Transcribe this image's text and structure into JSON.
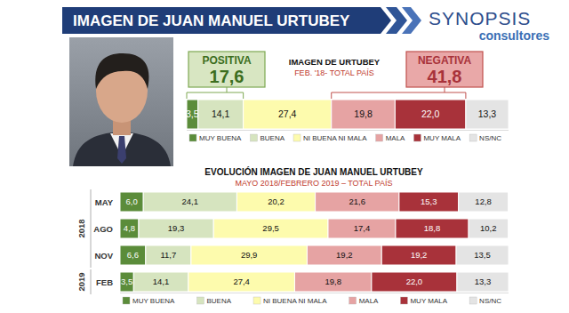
{
  "header": {
    "title": "IMAGEN DE JUAN MANUEL URTUBEY",
    "logo_main": "SYNOPSIS",
    "logo_sub": "consultores"
  },
  "summary": {
    "positive": {
      "label": "POSITIVA",
      "value": 17.6,
      "value_label": "17,6"
    },
    "negative": {
      "label": "NEGATIVA",
      "value": 41.8,
      "value_label": "41,8"
    }
  },
  "chart_data": [
    {
      "type": "bar",
      "orientation": "horizontal",
      "stacked": true,
      "data_labels": true,
      "tick_labels": false,
      "legend": "bottom",
      "title": "IMAGEN DE URTUBEY",
      "subtitle": "FEB. '18- TOTAL PAÍS",
      "categories": [
        null
      ],
      "xlim": [
        0,
        100.1
      ],
      "series": [
        {
          "name": "MUY BUENA",
          "color": "#5b8c3a",
          "values": [
            3.5
          ],
          "value_labels": [
            "3,5"
          ]
        },
        {
          "name": "BUENA",
          "color": "#d6e4bf",
          "values": [
            14.1
          ],
          "value_labels": [
            "14,1"
          ]
        },
        {
          "name": "NI BUENA NI MALA",
          "color": "#fdfbad",
          "values": [
            27.4
          ],
          "value_labels": [
            "27,4"
          ]
        },
        {
          "name": "MALA",
          "color": "#e6a3a3",
          "values": [
            19.8
          ],
          "value_labels": [
            "19,8"
          ]
        },
        {
          "name": "MUY MALA",
          "color": "#a8323a",
          "values": [
            22.0
          ],
          "value_labels": [
            "22,0"
          ]
        },
        {
          "name": "NS/NC",
          "color": "#e4e4e4",
          "values": [
            13.3
          ],
          "value_labels": [
            "13,3"
          ]
        }
      ]
    },
    {
      "type": "bar",
      "orientation": "horizontal",
      "stacked": true,
      "data_labels": true,
      "tick_labels": "y",
      "legend": "bottom",
      "title": "EVOLUCIÓN IMAGEN DE JUAN MANUEL URTUBEY",
      "subtitle": "MAYO 2018/FEBRERO 2019 – TOTAL PAÍS",
      "categories": [
        "MAY",
        "AGO",
        "NOV",
        "FEB"
      ],
      "xlim": [
        0,
        100.1
      ],
      "category_groups": [
        {
          "label": "2018",
          "categories": [
            "MAY",
            "AGO",
            "NOV"
          ]
        },
        {
          "label": "2019",
          "categories": [
            "FEB"
          ]
        }
      ],
      "series": [
        {
          "name": "MUY BUENA",
          "color": "#5b8c3a",
          "values": [
            6.0,
            4.8,
            6.6,
            3.5
          ],
          "value_labels": [
            "6,0",
            "4,8",
            "6,6",
            "3,5"
          ]
        },
        {
          "name": "BUENA",
          "color": "#d6e4bf",
          "values": [
            24.1,
            19.3,
            11.7,
            14.1
          ],
          "value_labels": [
            "24,1",
            "19,3",
            "11,7",
            "14,1"
          ]
        },
        {
          "name": "NI BUENA NI MALA",
          "color": "#fdfbad",
          "values": [
            20.2,
            29.5,
            29.9,
            27.4
          ],
          "value_labels": [
            "20,2",
            "29,5",
            "29,9",
            "27,4"
          ]
        },
        {
          "name": "MALA",
          "color": "#e6a3a3",
          "values": [
            21.6,
            17.4,
            19.2,
            19.8
          ],
          "value_labels": [
            "21,6",
            "17,4",
            "19,2",
            "19,8"
          ]
        },
        {
          "name": "MUY MALA",
          "color": "#a8323a",
          "values": [
            15.3,
            18.8,
            19.2,
            22.0
          ],
          "value_labels": [
            "15,3",
            "18,8",
            "19,2",
            "22,0"
          ]
        },
        {
          "name": "NS/NC",
          "color": "#e4e4e4",
          "values": [
            12.8,
            10.2,
            13.5,
            13.3
          ],
          "value_labels": [
            "12,8",
            "10,2",
            "13,5",
            "13,3"
          ]
        }
      ]
    }
  ]
}
